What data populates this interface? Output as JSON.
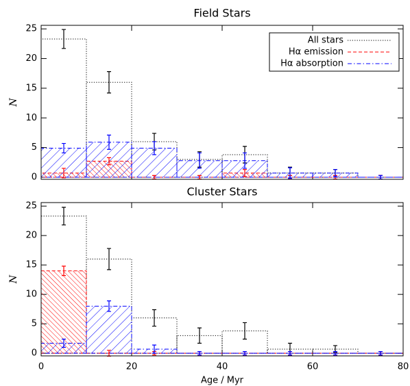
{
  "chart_data": [
    {
      "type": "histogram",
      "title": "Field Stars",
      "ylabel": "N",
      "bins": [
        0,
        10,
        20,
        30,
        40,
        50,
        60,
        70,
        80
      ],
      "xlim": [
        0,
        80
      ],
      "ylim": [
        -0.35,
        25.6
      ],
      "yticks": [
        0,
        5,
        10,
        15,
        20,
        25
      ],
      "legend": "upper right",
      "series": [
        {
          "name": "All stars",
          "color": "#000000",
          "linestyle": "dotted",
          "values": [
            23.3,
            16,
            6,
            3,
            3.8,
            0.7,
            0.7,
            0
          ],
          "errors": [
            1.6,
            1.8,
            1.4,
            1.3,
            1.4,
            1.0,
            0.6,
            0.3
          ]
        },
        {
          "name": "Hα emission",
          "color": "#ff0000",
          "linestyle": "dashed",
          "hatch": "\\",
          "values": [
            0.7,
            2.7,
            0,
            0,
            0.7,
            0,
            0,
            0
          ],
          "errors": [
            0.8,
            0.6,
            0.3,
            0.3,
            0.6,
            0.3,
            0.3,
            0.3
          ]
        },
        {
          "name": "Hα absorption",
          "color": "#0000ff",
          "linestyle": "dashdot",
          "hatch": "/",
          "values": [
            4.9,
            5.9,
            4.9,
            2.8,
            2.8,
            0.7,
            0.7,
            0
          ],
          "errors": [
            0.8,
            1.2,
            1.1,
            1.3,
            1.3,
            0.9,
            0.6,
            0.3
          ]
        }
      ]
    },
    {
      "type": "histogram",
      "title": "Cluster Stars",
      "ylabel": "N",
      "xlabel": "Age / Myr",
      "bins": [
        0,
        10,
        20,
        30,
        40,
        50,
        60,
        70,
        80
      ],
      "xlim": [
        0,
        80
      ],
      "ylim": [
        -0.45,
        25.6
      ],
      "xticks": [
        0,
        20,
        40,
        60,
        80
      ],
      "yticks": [
        0,
        5,
        10,
        15,
        20,
        25
      ],
      "series": [
        {
          "color": "#000000",
          "linestyle": "dotted",
          "values": [
            23.3,
            16,
            6,
            3,
            3.8,
            0.7,
            0.7,
            0
          ],
          "errors": [
            1.5,
            1.8,
            1.4,
            1.3,
            1.4,
            1.0,
            0.6,
            0.3
          ]
        },
        {
          "color": "#ff0000",
          "linestyle": "dashed",
          "hatch": "\\",
          "values": [
            14,
            0,
            0,
            0,
            0,
            0,
            0,
            0
          ],
          "errors": [
            0.8,
            0.5,
            0.3,
            0.3,
            0.3,
            0.3,
            0.3,
            0.3
          ]
        },
        {
          "color": "#0000ff",
          "linestyle": "dashdot",
          "hatch": "/",
          "values": [
            1.7,
            8,
            0.7,
            0,
            0,
            0,
            0,
            0
          ],
          "errors": [
            0.7,
            0.9,
            0.7,
            0.3,
            0.3,
            0.3,
            0.3,
            0.3
          ]
        }
      ]
    }
  ]
}
